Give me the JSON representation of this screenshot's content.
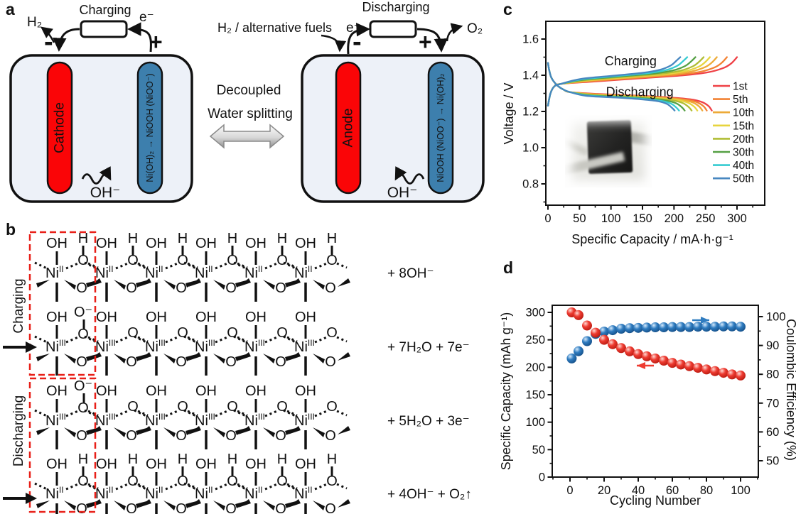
{
  "figure": {
    "background": "#ffffff"
  },
  "panels": {
    "a": {
      "label": "a",
      "left_cell": {
        "top_label": "Charging",
        "electron_label": "e⁻",
        "gas_label": "H₂",
        "minus": "-",
        "plus": "+",
        "red_electrode": "Cathode",
        "blue_electrode": "Ni(OH)₂ → NiOOH (NiOO⁻)",
        "ion_label": "OH⁻"
      },
      "center": {
        "line1": "Decoupled",
        "line2": "Water splitting"
      },
      "right_cell": {
        "top_label": "Discharging",
        "fuel_label": "H₂ / alternative fuels",
        "electron_label": "e⁻",
        "gas_label": "O₂",
        "minus": "-",
        "plus": "+",
        "red_electrode": "Anode",
        "blue_electrode": "NiOOH (NiOO⁻) → Ni(OH)₂",
        "ion_label": "OH⁻"
      },
      "colors": {
        "cell_fill": "#edf1f8",
        "electrode_red": "#fa0507",
        "electrode_blue": "#3d7fad",
        "outline": "#111111"
      }
    },
    "b": {
      "label": "b",
      "side_labels": [
        {
          "text": "Charging"
        },
        {
          "text": "Discharging"
        }
      ],
      "atoms": {
        "ni": "Ni",
        "oh": "OH",
        "h": "H",
        "o": "O",
        "o_minus": "O⁻"
      },
      "units_per_row": 6,
      "rows": [
        {
          "oxidation": "II",
          "bridge": "OH",
          "first_bridge": "OH",
          "equation": "+ 8OH⁻"
        },
        {
          "oxidation": "III",
          "bridge": "O",
          "first_bridge": "OO-",
          "equation": "+ 7H₂O + 7e⁻"
        },
        {
          "oxidation": "III",
          "bridge": "O",
          "first_bridge": "OO-",
          "equation": "+ 5H₂O  + 3e⁻"
        },
        {
          "oxidation": "II",
          "bridge": "OH",
          "first_bridge": "OH",
          "equation": "+ 4OH⁻  + O₂↑"
        }
      ],
      "highlight_color": "#e82019"
    },
    "c": {
      "label": "c"
    },
    "d": {
      "label": "d"
    }
  },
  "chart_data": [
    {
      "panel": "c",
      "type": "line",
      "xlabel": "Specific Capacity / mA·h·g⁻¹",
      "ylabel": "Voltage / V",
      "xlim": [
        0,
        340
      ],
      "ylim": [
        0.68,
        1.7
      ],
      "xticks": [
        0,
        50,
        100,
        150,
        200,
        250,
        300
      ],
      "yticks": [
        0.8,
        1.0,
        1.2,
        1.4,
        1.6
      ],
      "x_minor_step": 25,
      "y_minor_step": 0.1,
      "grid": false,
      "legend_position": "right-inside",
      "annotations": [
        {
          "text": "Charging",
          "x": 90,
          "v": 1.455
        },
        {
          "text": "Discharging",
          "x": 92,
          "v": 1.285
        }
      ],
      "inset_photo": "battery cell photograph",
      "series": [
        {
          "name": "1st",
          "color": "#ef4146",
          "charge_end_capacity": 300,
          "discharge_end_capacity": 260
        },
        {
          "name": "5th",
          "color": "#f28233",
          "charge_end_capacity": 284,
          "discharge_end_capacity": 252
        },
        {
          "name": "10th",
          "color": "#edaa38",
          "charge_end_capacity": 268,
          "discharge_end_capacity": 245
        },
        {
          "name": "15th",
          "color": "#e7d43e",
          "charge_end_capacity": 257,
          "discharge_end_capacity": 237
        },
        {
          "name": "20th",
          "color": "#b0bd35",
          "charge_end_capacity": 247,
          "discharge_end_capacity": 228
        },
        {
          "name": "30th",
          "color": "#55a044",
          "charge_end_capacity": 234,
          "discharge_end_capacity": 217
        },
        {
          "name": "40th",
          "color": "#35cbd1",
          "charge_end_capacity": 221,
          "discharge_end_capacity": 208
        },
        {
          "name": "50th",
          "color": "#4787c0",
          "charge_end_capacity": 210,
          "discharge_end_capacity": 201
        }
      ],
      "charge_profile_V": {
        "abs": [
          [
            0,
            1.232
          ],
          [
            4,
            1.3
          ],
          [
            10,
            1.338
          ],
          [
            20,
            1.352
          ]
        ],
        "frac": [
          [
            0.25,
            1.366
          ],
          [
            0.5,
            1.384
          ],
          [
            0.72,
            1.4
          ],
          [
            0.85,
            1.417
          ],
          [
            0.93,
            1.441
          ],
          [
            0.97,
            1.466
          ],
          [
            1.0,
            1.5
          ]
        ]
      },
      "discharge_profile_V": {
        "abs": [
          [
            0,
            1.468
          ],
          [
            2,
            1.428
          ],
          [
            5,
            1.39
          ],
          [
            10,
            1.362
          ],
          [
            16,
            1.34
          ],
          [
            25,
            1.32
          ],
          [
            35,
            1.307
          ]
        ],
        "frac": [
          [
            0.3,
            1.297
          ],
          [
            0.55,
            1.287
          ],
          [
            0.75,
            1.277
          ],
          [
            0.87,
            1.267
          ],
          [
            0.94,
            1.252
          ],
          [
            0.98,
            1.23
          ],
          [
            1.0,
            1.205
          ]
        ]
      }
    },
    {
      "panel": "d",
      "type": "scatter",
      "xlabel": "Cycling Number",
      "ylabel_left": "Specific Capacity (mAh g⁻¹)",
      "ylabel_right": "Coulombic Efficiency (%)",
      "xticks": [
        0,
        20,
        40,
        60,
        80,
        100
      ],
      "yticks_left": [
        0,
        50,
        100,
        150,
        200,
        250,
        300
      ],
      "yticks_right": [
        50,
        60,
        70,
        80,
        90,
        100
      ],
      "x_minor_step": 10,
      "left_minor_step": 25,
      "right_minor_step": 5,
      "grid": false,
      "capacity_color": "#ee3b31",
      "efficiency_color": "#2f7cc0",
      "cycles": [
        1,
        5,
        10,
        15,
        20,
        25,
        30,
        35,
        40,
        45,
        50,
        55,
        60,
        65,
        70,
        75,
        80,
        85,
        90,
        95,
        100
      ],
      "capacity_mAh_g": [
        300,
        295,
        276,
        263,
        250,
        242,
        235,
        229,
        224,
        220,
        216,
        212,
        208,
        205,
        202,
        199,
        196,
        193,
        190,
        187,
        185
      ],
      "coulombic_efficiency_pct": [
        85.5,
        88,
        91.5,
        94,
        94.8,
        95.3,
        95.8,
        96,
        96.1,
        96.2,
        96.3,
        96.3,
        96.4,
        96.4,
        96.4,
        96.5,
        96.5,
        96.5,
        96.6,
        96.6,
        96.5
      ]
    }
  ]
}
